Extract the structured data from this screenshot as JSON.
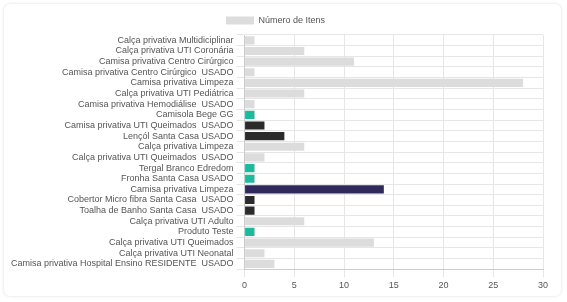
{
  "chart_data": {
    "type": "bar",
    "orientation": "horizontal",
    "categories": [
      "Calça privativa Multidiciplinar",
      "Calça privativa UTI Coronária",
      "Camisa privativa Centro Cirúrgico",
      "Camisa privativa Centro Cirúrgico  USADO",
      "Camisa privativa Limpeza",
      "Calça privativa UTI Pediátrica",
      "Camisa privativa Hemodiálise  USADO",
      "Camisola Bege GG",
      "Camisa privativa UTI Queimados  USADO",
      "Lençól Santa Casa USADO",
      "Calça privativa Limpeza",
      "Calça privativa UTI Queimados  USADO",
      "Tergal Branco Edredom",
      "Fronha Santa Casa USADO",
      "Camisa privativa Limpeza",
      "Cobertor Micro fibra Santa Casa  USADO",
      "Toalha de Banho Santa Casa  USADO",
      "Calça privativa UTI Adulto",
      "Produto Teste",
      "Calça privativa UTI Queimados",
      "Calça privativa UTI Neonatal",
      "Camisa privativa Hospital Ensino RESIDENTE  USADO"
    ],
    "series": [
      {
        "name": "Número de Itens",
        "color": "#dcdcdc",
        "values": [
          1,
          6,
          11,
          1,
          28,
          6,
          1,
          1,
          2,
          4,
          6,
          2,
          1,
          1,
          14,
          1,
          1,
          6,
          1,
          13,
          2,
          3
        ],
        "colors": [
          "#dcdcdc",
          "#dcdcdc",
          "#dcdcdc",
          "#dcdcdc",
          "#dcdcdc",
          "#dcdcdc",
          "#dcdcdc",
          "#1abc9c",
          "#2b2b2b",
          "#2b2b2b",
          "#dcdcdc",
          "#dcdcdc",
          "#1abc9c",
          "#1abc9c",
          "#2e2a5c",
          "#2b2b2b",
          "#2b2b2b",
          "#dcdcdc",
          "#1abc9c",
          "#dcdcdc",
          "#dcdcdc",
          "#dcdcdc"
        ]
      }
    ],
    "xlim": [
      0,
      30
    ],
    "xticks": [
      0,
      5,
      10,
      15,
      20,
      25,
      30
    ],
    "grid": true,
    "legend": "top"
  }
}
